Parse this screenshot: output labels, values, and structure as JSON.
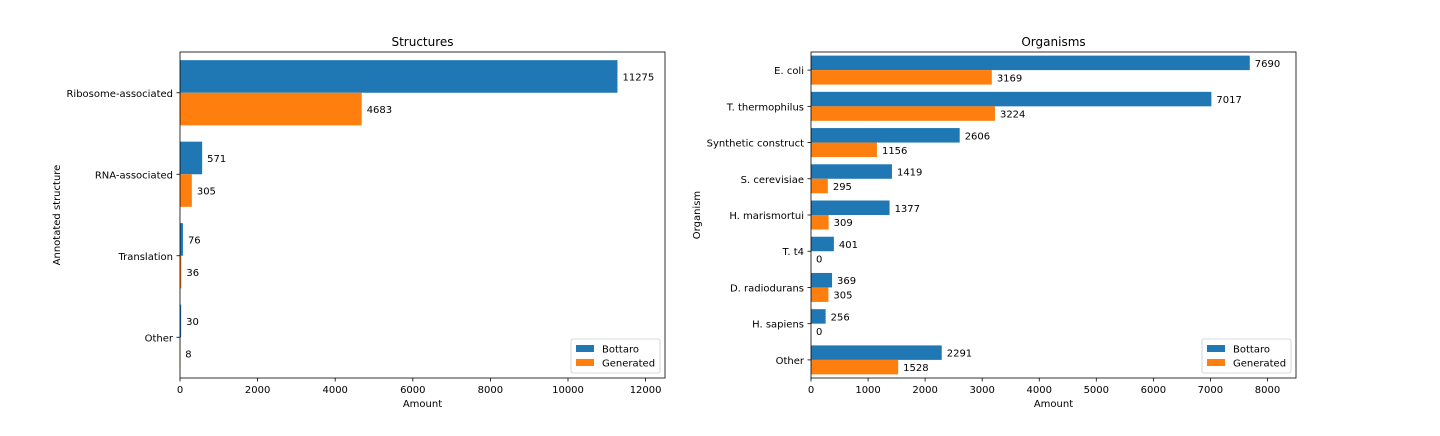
{
  "colors": {
    "bottaro": "#1f77b4",
    "generated": "#ff7f0e"
  },
  "chart_data": [
    {
      "type": "bar",
      "orientation": "horizontal",
      "title": "Structures",
      "xlabel": "Amount",
      "ylabel": "Annotated structure",
      "xlim": [
        0,
        12500
      ],
      "xticks": [
        "0",
        "2000",
        "4000",
        "6000",
        "8000",
        "10000",
        "12000"
      ],
      "categories": [
        "Ribosome-associated",
        "RNA-associated",
        "Translation",
        "Other"
      ],
      "series": [
        {
          "name": "Bottaro",
          "values": [
            11275,
            571,
            76,
            30
          ]
        },
        {
          "name": "Generated",
          "values": [
            4683,
            305,
            36,
            8
          ]
        }
      ],
      "legend": "lower-right",
      "grid": false
    },
    {
      "type": "bar",
      "orientation": "horizontal",
      "title": "Organisms",
      "xlabel": "Amount",
      "ylabel": "Organism",
      "xlim": [
        0,
        8500
      ],
      "xticks": [
        "0",
        "1000",
        "2000",
        "3000",
        "4000",
        "5000",
        "6000",
        "7000",
        "8000"
      ],
      "categories": [
        "E. coli",
        "T. thermophilus",
        "Synthetic construct",
        "S. cerevisiae",
        "H. marismortui",
        "T. t4",
        "D. radiodurans",
        "H. sapiens",
        "Other"
      ],
      "series": [
        {
          "name": "Bottaro",
          "values": [
            7690,
            7017,
            2606,
            1419,
            1377,
            401,
            369,
            256,
            2291
          ]
        },
        {
          "name": "Generated",
          "values": [
            3169,
            3224,
            1156,
            295,
            309,
            0,
            305,
            0,
            1528
          ]
        }
      ],
      "legend": "lower-right",
      "grid": false
    }
  ]
}
